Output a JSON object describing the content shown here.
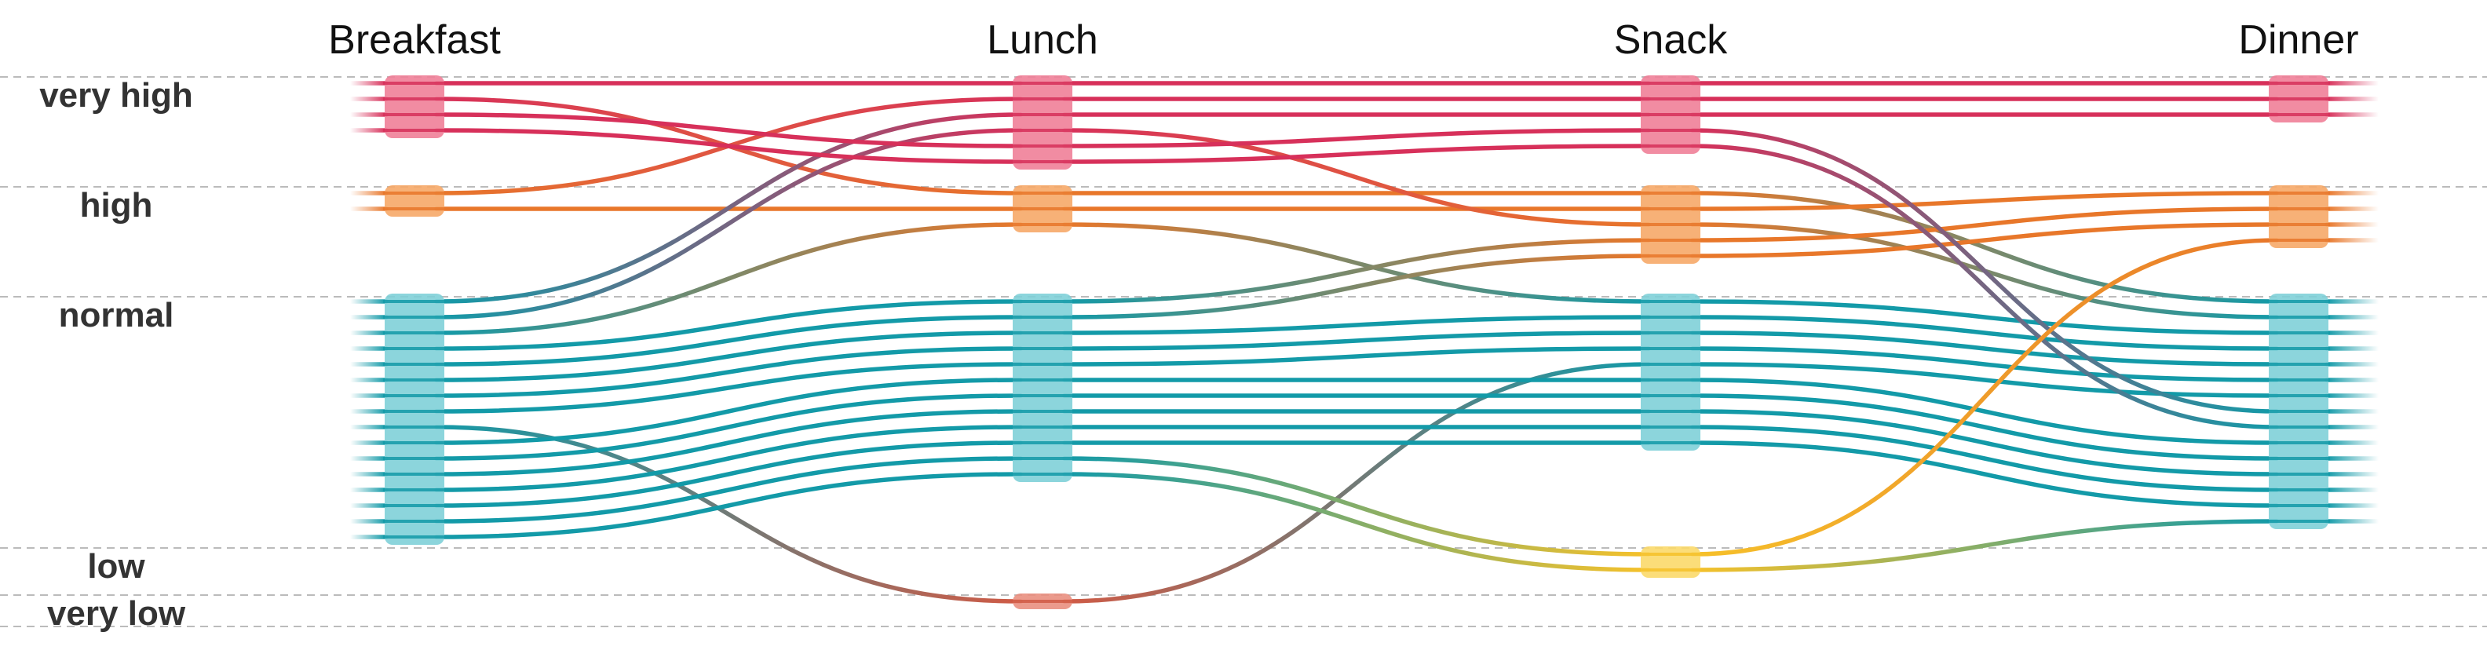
{
  "chart_data": {
    "type": "alluvial",
    "columns": [
      "Breakfast",
      "Lunch",
      "Snack",
      "Dinner"
    ],
    "levels": [
      "very high",
      "high",
      "normal",
      "low",
      "very low"
    ],
    "level_colors": {
      "very high": "#d7305a",
      "high": "#e8772a",
      "normal": "#139aa8",
      "low": "#f6c12a",
      "very low": "#d05a45"
    },
    "grid": true,
    "records": [
      [
        "very high",
        "very high",
        "very high",
        "very high"
      ],
      [
        "very high",
        "high",
        "high",
        "normal"
      ],
      [
        "high",
        "very high",
        "very high",
        "very high"
      ],
      [
        "high",
        "high",
        "high",
        "high"
      ],
      [
        "normal",
        "very high",
        "very high",
        "very high"
      ],
      [
        "normal",
        "very high",
        "high",
        "normal"
      ],
      [
        "normal",
        "high",
        "normal",
        "normal"
      ],
      [
        "normal",
        "normal",
        "high",
        "high"
      ],
      [
        "normal",
        "normal",
        "high",
        "high"
      ],
      [
        "normal",
        "normal",
        "normal",
        "normal"
      ],
      [
        "normal",
        "normal",
        "normal",
        "normal"
      ],
      [
        "normal",
        "normal",
        "normal",
        "normal"
      ],
      [
        "normal",
        "very low",
        "normal",
        "normal"
      ],
      [
        "very high",
        "very high",
        "very high",
        "normal"
      ],
      [
        "very high",
        "very high",
        "very high",
        "normal"
      ],
      [
        "normal",
        "normal",
        "normal",
        "normal"
      ],
      [
        "normal",
        "normal",
        "normal",
        "normal"
      ],
      [
        "normal",
        "normal",
        "normal",
        "normal"
      ],
      [
        "normal",
        "normal",
        "normal",
        "normal"
      ],
      [
        "normal",
        "normal",
        "normal",
        "normal"
      ],
      [
        "normal",
        "normal",
        "low",
        "high"
      ],
      [
        "normal",
        "normal",
        "low",
        "normal"
      ]
    ]
  }
}
